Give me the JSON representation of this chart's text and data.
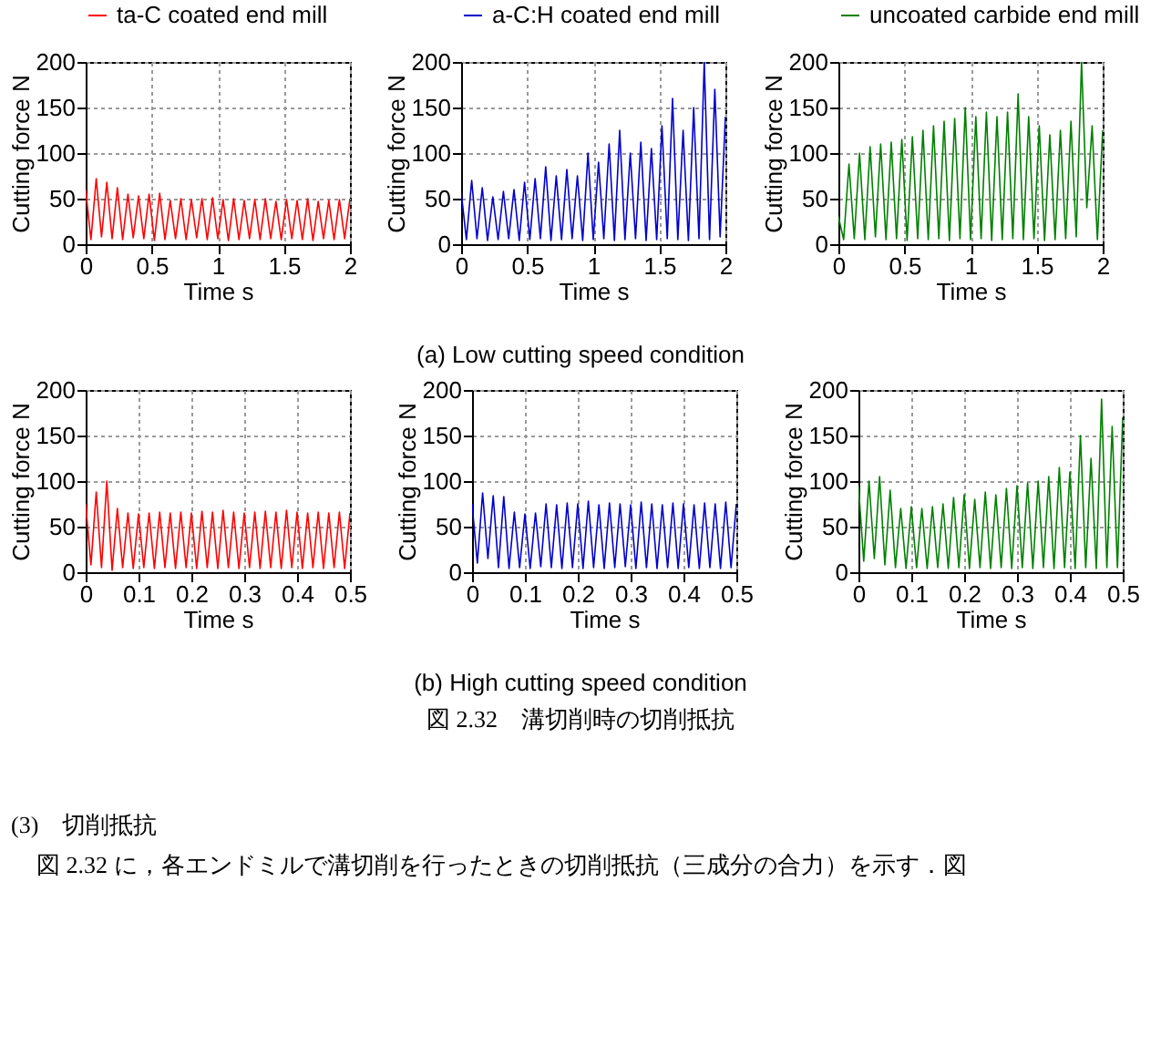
{
  "chart_data": [
    {
      "type": "line",
      "xlabel": "Time  s",
      "ylabel": "Cutting force  N",
      "xlim": [
        0,
        2
      ],
      "xticks": [
        0,
        0.5,
        1,
        1.5,
        2
      ],
      "ylim": [
        0,
        200
      ],
      "yticks": [
        0,
        50,
        100,
        150,
        200
      ],
      "grid": true,
      "legend": "top",
      "x": [
        0,
        0.04,
        0.08,
        0.12,
        0.16,
        0.2,
        0.24,
        0.28,
        0.32,
        0.36,
        0.4,
        0.44,
        0.48,
        0.52,
        0.56,
        0.6,
        0.64,
        0.68,
        0.72,
        0.76,
        0.8,
        0.84,
        0.88,
        0.92,
        0.96,
        1,
        1.04,
        1.08,
        1.12,
        1.16,
        1.2,
        1.24,
        1.28,
        1.32,
        1.36,
        1.4,
        1.44,
        1.48,
        1.52,
        1.56,
        1.6,
        1.64,
        1.68,
        1.72,
        1.76,
        1.8,
        1.84,
        1.88,
        1.92,
        1.96,
        2
      ],
      "series": [
        {
          "name": "ta-C coated end mill",
          "color": "#ff0000",
          "values": [
            60,
            5,
            72,
            8,
            68,
            6,
            62,
            5,
            55,
            7,
            53,
            6,
            55,
            4,
            56,
            5,
            48,
            6,
            50,
            5,
            49,
            7,
            50,
            5,
            51,
            6,
            49,
            4,
            50,
            5,
            48,
            6,
            49,
            5,
            50,
            6,
            47,
            5,
            49,
            6,
            48,
            5,
            50,
            4,
            47,
            6,
            48,
            5,
            49,
            6,
            50
          ]
        }
      ]
    },
    {
      "type": "line",
      "xlabel": "Time  s",
      "ylabel": "Cutting force  N",
      "xlim": [
        0,
        2
      ],
      "xticks": [
        0,
        0.5,
        1,
        1.5,
        2
      ],
      "ylim": [
        0,
        200
      ],
      "yticks": [
        0,
        50,
        100,
        150,
        200
      ],
      "grid": true,
      "legend": "top",
      "x": [
        0,
        0.04,
        0.08,
        0.12,
        0.16,
        0.2,
        0.24,
        0.28,
        0.32,
        0.36,
        0.4,
        0.44,
        0.48,
        0.52,
        0.56,
        0.6,
        0.64,
        0.68,
        0.72,
        0.76,
        0.8,
        0.84,
        0.88,
        0.92,
        0.96,
        1,
        1.04,
        1.08,
        1.12,
        1.16,
        1.2,
        1.24,
        1.28,
        1.32,
        1.36,
        1.4,
        1.44,
        1.48,
        1.52,
        1.56,
        1.6,
        1.64,
        1.68,
        1.72,
        1.76,
        1.8,
        1.84,
        1.88,
        1.92,
        1.96,
        2
      ],
      "series": [
        {
          "name": "a-C:H coated end mill",
          "color": "#0000cc",
          "values": [
            58,
            5,
            70,
            6,
            62,
            4,
            52,
            5,
            58,
            6,
            60,
            4,
            68,
            5,
            72,
            6,
            85,
            4,
            75,
            5,
            82,
            6,
            75,
            4,
            100,
            5,
            90,
            6,
            110,
            4,
            125,
            5,
            100,
            6,
            112,
            4,
            105,
            5,
            130,
            6,
            160,
            5,
            125,
            4,
            150,
            6,
            200,
            5,
            170,
            8,
            140
          ]
        }
      ]
    },
    {
      "type": "line",
      "xlabel": "Time  s",
      "ylabel": "Cutting force  N",
      "xlim": [
        0,
        2
      ],
      "xticks": [
        0,
        0.5,
        1,
        1.5,
        2
      ],
      "ylim": [
        0,
        200
      ],
      "yticks": [
        0,
        50,
        100,
        150,
        200
      ],
      "grid": true,
      "legend": "top",
      "x": [
        0,
        0.04,
        0.08,
        0.12,
        0.16,
        0.2,
        0.24,
        0.28,
        0.32,
        0.36,
        0.4,
        0.44,
        0.48,
        0.52,
        0.56,
        0.6,
        0.64,
        0.68,
        0.72,
        0.76,
        0.8,
        0.84,
        0.88,
        0.92,
        0.96,
        1,
        1.04,
        1.08,
        1.12,
        1.16,
        1.2,
        1.24,
        1.28,
        1.32,
        1.36,
        1.4,
        1.44,
        1.48,
        1.52,
        1.56,
        1.6,
        1.64,
        1.68,
        1.72,
        1.76,
        1.8,
        1.84,
        1.88,
        1.92,
        1.96,
        2
      ],
      "series": [
        {
          "name": "uncoated carbide end mill",
          "color": "#008000",
          "values": [
            30,
            5,
            88,
            6,
            100,
            5,
            107,
            8,
            110,
            5,
            112,
            6,
            115,
            4,
            118,
            6,
            125,
            5,
            130,
            6,
            135,
            4,
            138,
            6,
            150,
            5,
            140,
            6,
            145,
            4,
            140,
            5,
            145,
            6,
            165,
            5,
            140,
            6,
            130,
            4,
            120,
            5,
            125,
            6,
            135,
            8,
            200,
            40,
            130,
            5,
            125
          ]
        }
      ],
      "annotations": [
        "(a) Low cutting speed condition"
      ]
    },
    {
      "type": "line",
      "xlabel": "Time  s",
      "ylabel": "Cutting force  N",
      "xlim": [
        0,
        0.5
      ],
      "xticks": [
        0,
        0.1,
        0.2,
        0.3,
        0.4,
        0.5
      ],
      "ylim": [
        0,
        200
      ],
      "yticks": [
        0,
        50,
        100,
        150,
        200
      ],
      "grid": true,
      "x": [
        0,
        0.01,
        0.02,
        0.03,
        0.04,
        0.05,
        0.06,
        0.07,
        0.08,
        0.09,
        0.1,
        0.11,
        0.12,
        0.13,
        0.14,
        0.15,
        0.16,
        0.17,
        0.18,
        0.19,
        0.2,
        0.21,
        0.22,
        0.23,
        0.24,
        0.25,
        0.26,
        0.27,
        0.28,
        0.29,
        0.3,
        0.31,
        0.32,
        0.33,
        0.34,
        0.35,
        0.36,
        0.37,
        0.38,
        0.39,
        0.4,
        0.41,
        0.42,
        0.43,
        0.44,
        0.45,
        0.46,
        0.47,
        0.48,
        0.49,
        0.5
      ],
      "series": [
        {
          "color": "#ff0000",
          "values": [
            75,
            8,
            88,
            5,
            100,
            2,
            70,
            5,
            65,
            4,
            64,
            5,
            65,
            4,
            66,
            5,
            65,
            4,
            66,
            5,
            65,
            4,
            67,
            5,
            66,
            4,
            68,
            5,
            66,
            4,
            65,
            5,
            66,
            4,
            67,
            5,
            66,
            4,
            68,
            5,
            66,
            4,
            65,
            5,
            66,
            4,
            65,
            5,
            66,
            4,
            65
          ]
        }
      ]
    },
    {
      "type": "line",
      "xlabel": "Time  s",
      "ylabel": "Cutting force  N",
      "xlim": [
        0,
        0.5
      ],
      "xticks": [
        0,
        0.1,
        0.2,
        0.3,
        0.4,
        0.5
      ],
      "ylim": [
        0,
        200
      ],
      "yticks": [
        0,
        50,
        100,
        150,
        200
      ],
      "grid": true,
      "x": [
        0,
        0.01,
        0.02,
        0.03,
        0.04,
        0.05,
        0.06,
        0.07,
        0.08,
        0.09,
        0.1,
        0.11,
        0.12,
        0.13,
        0.14,
        0.15,
        0.16,
        0.17,
        0.18,
        0.19,
        0.2,
        0.21,
        0.22,
        0.23,
        0.24,
        0.25,
        0.26,
        0.27,
        0.28,
        0.29,
        0.3,
        0.31,
        0.32,
        0.33,
        0.34,
        0.35,
        0.36,
        0.37,
        0.38,
        0.39,
        0.4,
        0.41,
        0.42,
        0.43,
        0.44,
        0.45,
        0.46,
        0.47,
        0.48,
        0.49,
        0.5
      ],
      "series": [
        {
          "color": "#0000cc",
          "values": [
            75,
            10,
            87,
            15,
            84,
            5,
            83,
            4,
            66,
            5,
            64,
            4,
            65,
            6,
            75,
            5,
            74,
            4,
            76,
            5,
            75,
            4,
            78,
            5,
            74,
            4,
            76,
            5,
            75,
            6,
            74,
            4,
            77,
            5,
            75,
            4,
            74,
            5,
            76,
            4,
            75,
            5,
            74,
            4,
            76,
            5,
            75,
            4,
            77,
            5,
            75
          ]
        }
      ]
    },
    {
      "type": "line",
      "xlabel": "Time  s",
      "ylabel": "Cutting force  N",
      "xlim": [
        0,
        0.5
      ],
      "xticks": [
        0,
        0.1,
        0.2,
        0.3,
        0.4,
        0.5
      ],
      "ylim": [
        0,
        200
      ],
      "yticks": [
        0,
        50,
        100,
        150,
        200
      ],
      "grid": true,
      "x": [
        0,
        0.01,
        0.02,
        0.03,
        0.04,
        0.05,
        0.06,
        0.07,
        0.08,
        0.09,
        0.1,
        0.11,
        0.12,
        0.13,
        0.14,
        0.15,
        0.16,
        0.17,
        0.18,
        0.19,
        0.2,
        0.21,
        0.22,
        0.23,
        0.24,
        0.25,
        0.26,
        0.27,
        0.28,
        0.29,
        0.3,
        0.31,
        0.32,
        0.33,
        0.34,
        0.35,
        0.36,
        0.37,
        0.38,
        0.39,
        0.4,
        0.41,
        0.42,
        0.43,
        0.44,
        0.45,
        0.46,
        0.47,
        0.48,
        0.49,
        0.5
      ],
      "series": [
        {
          "color": "#008000",
          "values": [
            95,
            12,
            100,
            15,
            105,
            8,
            90,
            5,
            70,
            4,
            72,
            5,
            70,
            4,
            72,
            5,
            75,
            4,
            82,
            5,
            85,
            4,
            80,
            5,
            88,
            4,
            85,
            5,
            92,
            4,
            95,
            5,
            98,
            4,
            100,
            5,
            105,
            4,
            115,
            5,
            110,
            4,
            150,
            5,
            125,
            4,
            190,
            5,
            160,
            5,
            170
          ]
        }
      ],
      "annotations": [
        "(b) High cutting speed condition",
        "図 2.32　溝切削時の切削抵抗",
        "(3)　切削抵抗",
        "図 2.32 に，各エンドミルで溝切削を行ったときの切削抵抗（三成分の合力）を示す．図"
      ]
    }
  ]
}
